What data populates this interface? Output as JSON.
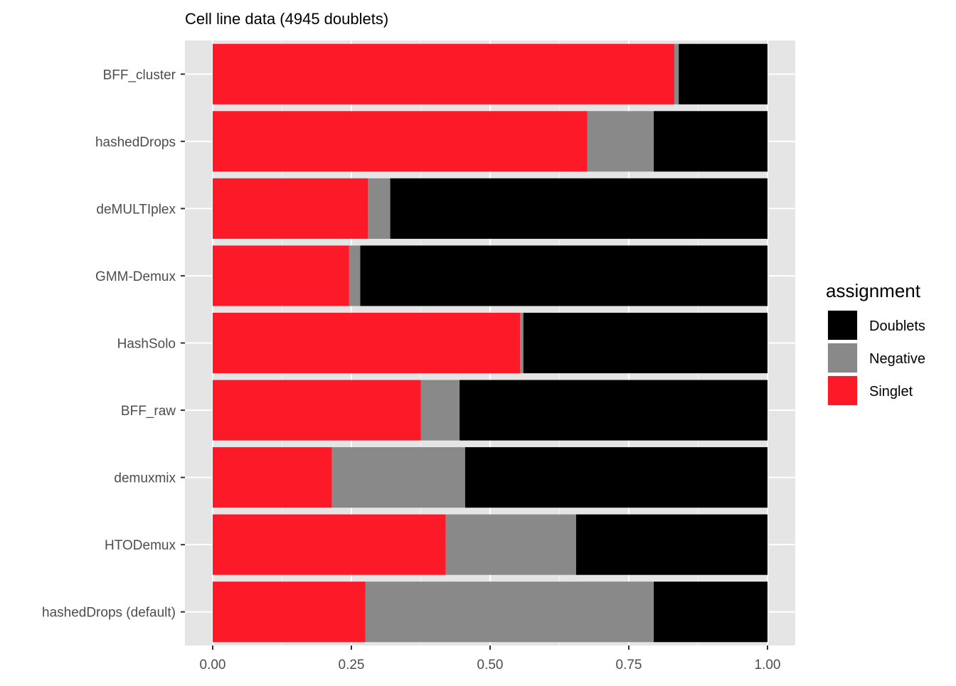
{
  "chart_data": {
    "type": "bar",
    "orientation": "horizontal",
    "stacked": true,
    "title": "Cell line data (4945 doublets)",
    "xlabel": "",
    "ylabel": "",
    "xlim": [
      0,
      1
    ],
    "x_ticks": [
      "0.00",
      "0.25",
      "0.50",
      "0.75",
      "1.00"
    ],
    "x_tick_values": [
      0,
      0.25,
      0.5,
      0.75,
      1.0
    ],
    "grid": true,
    "legend_position": "right",
    "legend_title": "assignment",
    "categories": [
      "BFF_cluster",
      "hashedDrops",
      "deMULTIplex",
      "GMM-Demux",
      "HashSolo",
      "BFF_raw",
      "demuxmix",
      "HTODemux",
      "hashedDrops (default)"
    ],
    "series": [
      {
        "name": "Singlet",
        "color": "#fc1a29",
        "values": [
          0.832,
          0.675,
          0.28,
          0.246,
          0.554,
          0.375,
          0.215,
          0.42,
          0.275
        ]
      },
      {
        "name": "Negative",
        "color": "#898989",
        "values": [
          0.008,
          0.12,
          0.04,
          0.02,
          0.006,
          0.07,
          0.24,
          0.235,
          0.52
        ]
      },
      {
        "name": "Doublets",
        "color": "#000000",
        "values": [
          0.16,
          0.205,
          0.68,
          0.734,
          0.44,
          0.555,
          0.545,
          0.345,
          0.205
        ]
      }
    ],
    "legend_order": [
      "Doublets",
      "Negative",
      "Singlet"
    ]
  }
}
